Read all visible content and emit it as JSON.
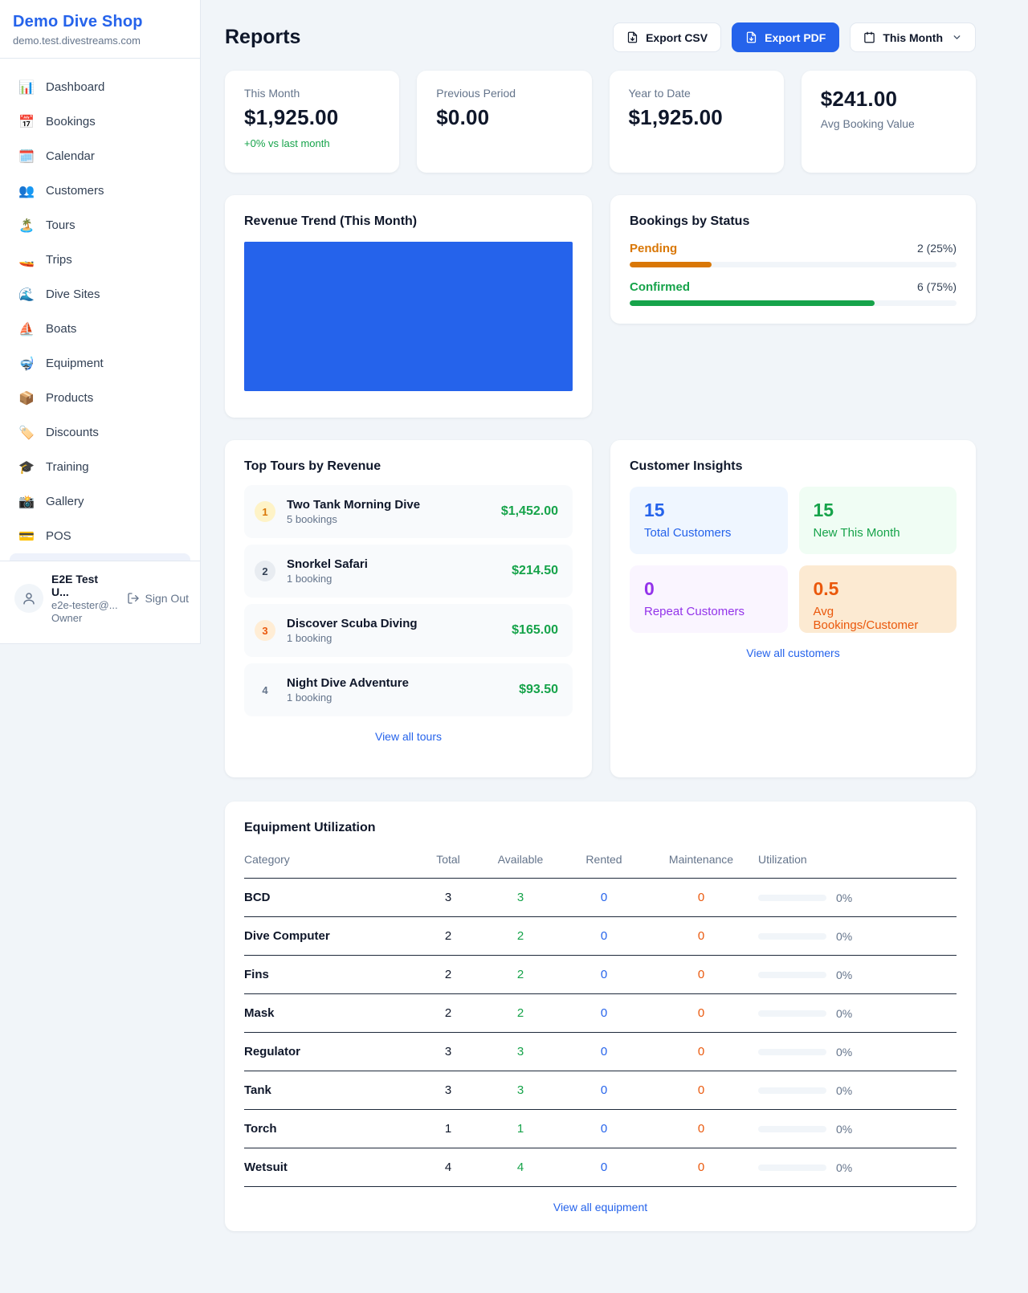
{
  "sidebar": {
    "shop_name": "Demo Dive Shop",
    "shop_domain": "demo.test.divestreams.com",
    "nav": [
      {
        "icon": "📊",
        "label": "Dashboard"
      },
      {
        "icon": "📅",
        "label": "Bookings"
      },
      {
        "icon": "🗓️",
        "label": "Calendar"
      },
      {
        "icon": "👥",
        "label": "Customers"
      },
      {
        "icon": "🏝️",
        "label": "Tours"
      },
      {
        "icon": "🚤",
        "label": "Trips"
      },
      {
        "icon": "🌊",
        "label": "Dive Sites"
      },
      {
        "icon": "⛵",
        "label": "Boats"
      },
      {
        "icon": "🤿",
        "label": "Equipment"
      },
      {
        "icon": "📦",
        "label": "Products"
      },
      {
        "icon": "🏷️",
        "label": "Discounts"
      },
      {
        "icon": "🎓",
        "label": "Training"
      },
      {
        "icon": "📸",
        "label": "Gallery"
      },
      {
        "icon": "💳",
        "label": "POS"
      }
    ],
    "user": {
      "name": "E2E Test U...",
      "email": "e2e-tester@...",
      "role": "Owner",
      "sign_out": "Sign Out"
    }
  },
  "header": {
    "title": "Reports",
    "export_csv": "Export CSV",
    "export_pdf": "Export PDF",
    "period": "This Month"
  },
  "stats": {
    "cards": [
      {
        "label": "This Month",
        "value": "$1,925.00",
        "delta": "+0% vs last month"
      },
      {
        "label": "Previous Period",
        "value": "$0.00"
      },
      {
        "label": "Year to Date",
        "value": "$1,925.00"
      },
      {
        "label": "Avg Booking Value",
        "value": "$241.00"
      }
    ]
  },
  "revenue_trend": {
    "title": "Revenue Trend (This Month)",
    "chart_data": {
      "type": "bar",
      "categories": [
        "This Month"
      ],
      "values": [
        1925
      ],
      "title": "Revenue Trend (This Month)",
      "xlabel": "",
      "ylabel": "",
      "color": "#2563eb",
      "note": "single solid blue bar filling the full plot area; no axes, ticks or labels visible"
    }
  },
  "bookings_by_status": {
    "title": "Bookings by Status",
    "rows": [
      {
        "label": "Pending",
        "value": "2 (25%)",
        "pct": 25,
        "color": "#d97706"
      },
      {
        "label": "Confirmed",
        "value": "6 (75%)",
        "pct": 75,
        "color": "#16a34a"
      }
    ]
  },
  "top_tours": {
    "title": "Top Tours by Revenue",
    "items": [
      {
        "rank": "1",
        "name": "Two Tank Morning Dive",
        "bookings": "5 bookings",
        "revenue": "$1,452.00"
      },
      {
        "rank": "2",
        "name": "Snorkel Safari",
        "bookings": "1 booking",
        "revenue": "$214.50"
      },
      {
        "rank": "3",
        "name": "Discover Scuba Diving",
        "bookings": "1 booking",
        "revenue": "$165.00"
      },
      {
        "rank": "4",
        "name": "Night Dive Adventure",
        "bookings": "1 booking",
        "revenue": "$93.50"
      }
    ],
    "view_all": "View all tours"
  },
  "customer_insights": {
    "title": "Customer Insights",
    "tiles": [
      {
        "value": "15",
        "label": "Total Customers",
        "color": "#2563eb"
      },
      {
        "value": "15",
        "label": "New This Month",
        "color": "#16a34a"
      },
      {
        "value": "0",
        "label": "Repeat Customers",
        "color": "#9333ea"
      },
      {
        "value": "0.5",
        "label": "Avg Bookings/Customer",
        "color": "#ea580c"
      }
    ],
    "view_all": "View all customers"
  },
  "equipment": {
    "title": "Equipment Utilization",
    "columns": [
      "Category",
      "Total",
      "Available",
      "Rented",
      "Maintenance",
      "Utilization"
    ],
    "rows": [
      {
        "category": "BCD",
        "total": "3",
        "available": "3",
        "rented": "0",
        "maintenance": "0",
        "utilization": "0%",
        "pct": 0
      },
      {
        "category": "Dive Computer",
        "total": "2",
        "available": "2",
        "rented": "0",
        "maintenance": "0",
        "utilization": "0%",
        "pct": 0
      },
      {
        "category": "Fins",
        "total": "2",
        "available": "2",
        "rented": "0",
        "maintenance": "0",
        "utilization": "0%",
        "pct": 0
      },
      {
        "category": "Mask",
        "total": "2",
        "available": "2",
        "rented": "0",
        "maintenance": "0",
        "utilization": "0%",
        "pct": 0
      },
      {
        "category": "Regulator",
        "total": "3",
        "available": "3",
        "rented": "0",
        "maintenance": "0",
        "utilization": "0%",
        "pct": 0
      },
      {
        "category": "Tank",
        "total": "3",
        "available": "3",
        "rented": "0",
        "maintenance": "0",
        "utilization": "0%",
        "pct": 0
      },
      {
        "category": "Torch",
        "total": "1",
        "available": "1",
        "rented": "0",
        "maintenance": "0",
        "utilization": "0%",
        "pct": 0
      },
      {
        "category": "Wetsuit",
        "total": "4",
        "available": "4",
        "rented": "0",
        "maintenance": "0",
        "utilization": "0%",
        "pct": 0
      }
    ],
    "view_all": "View all equipment"
  },
  "colors": {
    "accent_blue": "#2563eb",
    "green": "#16a34a",
    "orange_pending": "#d97706",
    "orange_deep": "#ea580c",
    "purple": "#9333ea",
    "text_dark": "#0f172a",
    "text_muted": "#64748b",
    "page_bg": "#f1f5f9"
  }
}
